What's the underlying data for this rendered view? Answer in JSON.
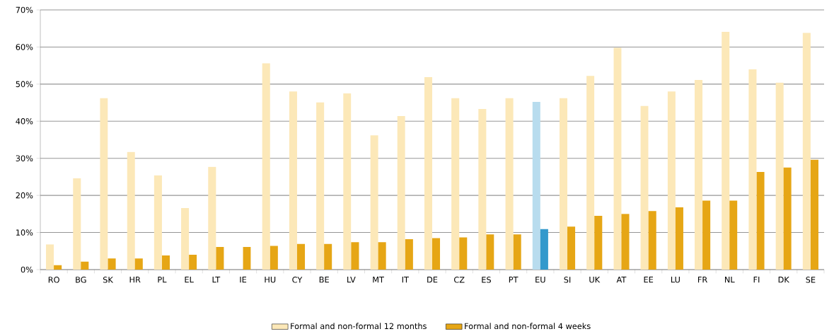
{
  "chart_data": {
    "type": "bar",
    "categories": [
      "RO",
      "BG",
      "SK",
      "HR",
      "PL",
      "EL",
      "LT",
      "IE",
      "HU",
      "CY",
      "BE",
      "LV",
      "MT",
      "IT",
      "DE",
      "CZ",
      "ES",
      "PT",
      "EU",
      "SI",
      "UK",
      "AT",
      "EE",
      "LU",
      "FR",
      "NL",
      "FI",
      "DK",
      "SE"
    ],
    "series": [
      {
        "name": "Formal and non-formal 12 months",
        "color": "#fce8b8",
        "colors": [
          "#fce8b8",
          "#fce8b8",
          "#fce8b8",
          "#fce8b8",
          "#fce8b8",
          "#fce8b8",
          "#fce8b8",
          "#fce8b8",
          "#fce8b8",
          "#fce8b8",
          "#fce8b8",
          "#fce8b8",
          "#fce8b8",
          "#fce8b8",
          "#fce8b8",
          "#fce8b8",
          "#fce8b8",
          "#fce8b8",
          "#b8dcee",
          "#fce8b8",
          "#fce8b8",
          "#fce8b8",
          "#fce8b8",
          "#fce8b8",
          "#fce8b8",
          "#fce8b8",
          "#fce8b8",
          "#fce8b8",
          "#fce8b8"
        ],
        "values": [
          6.8,
          24.6,
          46.2,
          31.7,
          25.4,
          16.6,
          27.7,
          null,
          55.6,
          48.0,
          45.1,
          47.5,
          36.2,
          41.4,
          51.9,
          46.2,
          43.3,
          46.2,
          45.2,
          46.2,
          52.2,
          59.8,
          44.1,
          48.0,
          51.1,
          64.1,
          54.0,
          50.4,
          63.8
        ]
      },
      {
        "name": "Formal and non-formal 4 weeks",
        "color": "#e6a615",
        "colors": [
          "#e6a615",
          "#e6a615",
          "#e6a615",
          "#e6a615",
          "#e6a615",
          "#e6a615",
          "#e6a615",
          "#e6a615",
          "#e6a615",
          "#e6a615",
          "#e6a615",
          "#e6a615",
          "#e6a615",
          "#e6a615",
          "#e6a615",
          "#e6a615",
          "#e6a615",
          "#e6a615",
          "#3399cc",
          "#e6a615",
          "#e6a615",
          "#e6a615",
          "#e6a615",
          "#e6a615",
          "#e6a615",
          "#e6a615",
          "#e6a615",
          "#e6a615",
          "#e6a615"
        ],
        "values": [
          1.2,
          2.2,
          3.0,
          3.0,
          3.8,
          4.0,
          6.1,
          6.1,
          6.4,
          6.9,
          6.9,
          7.4,
          7.4,
          8.2,
          8.5,
          8.7,
          9.5,
          9.5,
          10.9,
          11.6,
          14.5,
          15.0,
          15.8,
          16.8,
          18.6,
          18.6,
          26.3,
          27.5,
          29.6
        ]
      }
    ],
    "ylim": [
      0,
      70
    ],
    "yticks": [
      {
        "value": 0,
        "label": "0%"
      },
      {
        "value": 10,
        "label": "10%"
      },
      {
        "value": 20,
        "label": "20%"
      },
      {
        "value": 30,
        "label": "30%"
      },
      {
        "value": 40,
        "label": "40%"
      },
      {
        "value": 50,
        "label": "50%"
      },
      {
        "value": 60,
        "label": "60%"
      },
      {
        "value": 70,
        "label": "70%"
      }
    ],
    "grid": "y",
    "legend": "bottom"
  }
}
